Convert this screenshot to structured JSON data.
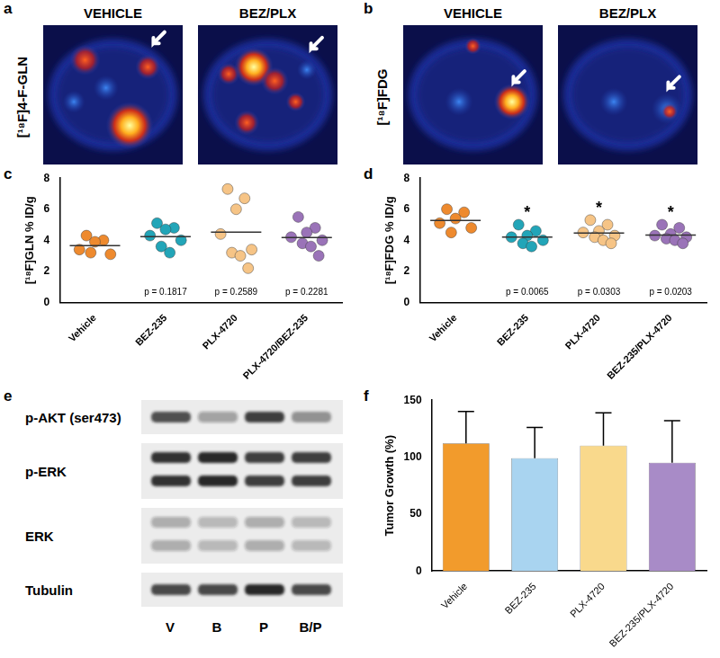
{
  "pet_images": [
    {
      "panel_label": "a",
      "tracer": "[¹⁸F]4-F-GLN",
      "image_titles": [
        "VEHICLE",
        "BEZ/PLX"
      ]
    },
    {
      "panel_label": "b",
      "tracer": "[¹⁸F]FDG",
      "image_titles": [
        "VEHICLE",
        "BEZ/PLX"
      ]
    }
  ],
  "western_blot": {
    "panel_label": "e",
    "lanes": [
      "V",
      "B",
      "P",
      "B/P"
    ],
    "rows": [
      {
        "label": "p-AKT (ser473)",
        "bands": 1,
        "intensity": [
          0.75,
          0.35,
          0.85,
          0.45
        ]
      },
      {
        "label": "p-ERK",
        "bands": 2,
        "intensity": [
          0.9,
          0.95,
          0.85,
          0.85
        ]
      },
      {
        "label": "ERK",
        "bands": 2,
        "intensity": [
          0.3,
          0.25,
          0.3,
          0.25
        ]
      },
      {
        "label": "Tubulin",
        "bands": 1,
        "intensity": [
          0.8,
          0.8,
          0.95,
          0.8
        ]
      }
    ]
  },
  "chart_data": [
    {
      "panel_label": "c",
      "type": "scatter",
      "ylabel": "[¹⁸F]GLN % ID/g",
      "categories": [
        "Vehicle",
        "BEZ-235",
        "PLX-4720",
        "PLX-4720/BEZ-235"
      ],
      "values": [
        [
          4.3,
          4.0,
          3.9,
          3.4,
          3.1,
          3.2
        ],
        [
          5.1,
          4.8,
          4.7,
          4.3,
          4.0,
          3.6,
          3.2
        ],
        [
          7.3,
          6.7,
          6.0,
          4.4,
          3.4,
          3.2,
          3.0,
          2.2
        ],
        [
          5.5,
          4.8,
          4.5,
          4.2,
          4.0,
          3.8,
          3.6,
          3.0
        ]
      ],
      "colors": [
        "#ee8a2e",
        "#22a5b8",
        "#f6c486",
        "#9a73b8"
      ],
      "means": [
        3.65,
        4.24,
        4.53,
        4.18
      ],
      "annotations": [
        null,
        "p = 0.1817",
        "p = 0.2589",
        "p = 0.2281"
      ],
      "ylim": [
        0,
        8
      ],
      "yticks": [
        0,
        2,
        4,
        6,
        8
      ],
      "grid": false
    },
    {
      "panel_label": "d",
      "type": "scatter",
      "ylabel": "[¹⁸F]FDG % ID/g",
      "categories": [
        "Vehicle",
        "BEZ-235",
        "PLX-4720",
        "BEZ-235/PLX-4720"
      ],
      "values": [
        [
          6.0,
          5.8,
          5.4,
          5.1,
          4.8,
          4.5
        ],
        [
          5.0,
          4.6,
          4.3,
          4.2,
          4.0,
          3.8,
          3.6
        ],
        [
          5.3,
          5.0,
          4.6,
          4.5,
          4.3,
          4.2,
          4.0,
          3.8
        ],
        [
          5.0,
          4.8,
          4.4,
          4.3,
          4.2,
          4.1,
          4.0,
          3.8
        ]
      ],
      "colors": [
        "#ee8a2e",
        "#22a5b8",
        "#f6c486",
        "#9a73b8"
      ],
      "means": [
        5.27,
        4.21,
        4.46,
        4.33
      ],
      "annotations": [
        null,
        "p = 0.0065",
        "p = 0.0303",
        "p = 0.0203"
      ],
      "significance": [
        null,
        "*",
        "*",
        "*"
      ],
      "ylim": [
        0,
        8
      ],
      "yticks": [
        0,
        2,
        4,
        6,
        8
      ],
      "grid": false
    },
    {
      "panel_label": "f",
      "type": "bar",
      "ylabel": "Tumor Growth (%)",
      "categories": [
        "Vehicle",
        "BEZ-235",
        "PLX-4720",
        "BEZ-235/PLX-4720"
      ],
      "values": [
        112,
        99,
        110,
        95
      ],
      "errors": [
        28,
        27,
        29,
        37
      ],
      "colors": [
        "#f29b2c",
        "#a9d4f0",
        "#f9d98c",
        "#a88bc7"
      ],
      "ylim": [
        0,
        150
      ],
      "yticks": [
        0,
        50,
        100,
        150
      ],
      "grid": false
    }
  ]
}
